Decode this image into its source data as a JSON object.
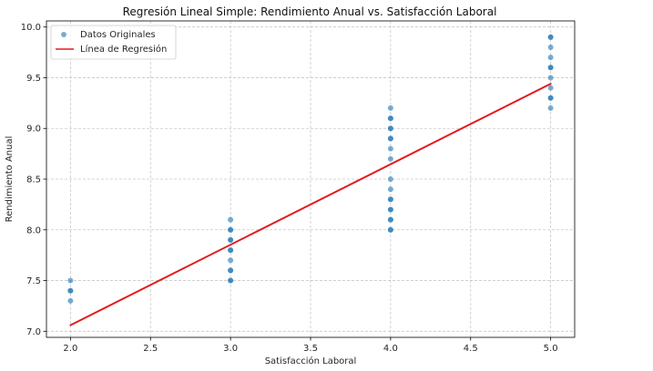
{
  "chart_data": {
    "type": "scatter",
    "title": "Regresión Lineal Simple: Rendimiento Anual vs. Satisfacción Laboral",
    "xlabel": "Satisfacción Laboral",
    "ylabel": "Rendimiento Anual",
    "xlim": [
      1.85,
      5.15
    ],
    "ylim": [
      6.94,
      10.06
    ],
    "xticks": [
      "2.0",
      "2.5",
      "3.0",
      "3.5",
      "4.0",
      "4.5",
      "5.0"
    ],
    "yticks": [
      "7.0",
      "7.5",
      "8.0",
      "8.5",
      "9.0",
      "9.5",
      "10.0"
    ],
    "grid": true,
    "legend_position": "top-left",
    "series": [
      {
        "name": "Datos Originales",
        "kind": "scatter",
        "color": "#1f77b4",
        "points": [
          [
            2,
            7.5
          ],
          [
            2,
            7.4
          ],
          [
            2,
            7.4
          ],
          [
            2,
            7.3
          ],
          [
            3,
            8.1
          ],
          [
            3,
            8.0
          ],
          [
            3,
            8.0
          ],
          [
            3,
            7.9
          ],
          [
            3,
            7.9
          ],
          [
            3,
            7.8
          ],
          [
            3,
            7.8
          ],
          [
            3,
            7.7
          ],
          [
            3,
            7.6
          ],
          [
            3,
            7.6
          ],
          [
            3,
            7.5
          ],
          [
            3,
            7.5
          ],
          [
            4,
            9.2
          ],
          [
            4,
            9.1
          ],
          [
            4,
            9.1
          ],
          [
            4,
            9.0
          ],
          [
            4,
            9.0
          ],
          [
            4,
            8.9
          ],
          [
            4,
            8.9
          ],
          [
            4,
            8.8
          ],
          [
            4,
            8.7
          ],
          [
            4,
            8.5
          ],
          [
            4,
            8.4
          ],
          [
            4,
            8.3
          ],
          [
            4,
            8.3
          ],
          [
            4,
            8.2
          ],
          [
            4,
            8.2
          ],
          [
            4,
            8.1
          ],
          [
            4,
            8.1
          ],
          [
            4,
            8.0
          ],
          [
            4,
            8.0
          ],
          [
            5,
            9.9
          ],
          [
            5,
            9.9
          ],
          [
            5,
            9.8
          ],
          [
            5,
            9.7
          ],
          [
            5,
            9.6
          ],
          [
            5,
            9.6
          ],
          [
            5,
            9.5
          ],
          [
            5,
            9.4
          ],
          [
            5,
            9.3
          ],
          [
            5,
            9.3
          ],
          [
            5,
            9.2
          ]
        ]
      },
      {
        "name": "Línea de Regresión",
        "kind": "line",
        "color": "#e41a1c",
        "x": [
          2,
          5
        ],
        "y": [
          7.06,
          9.44
        ]
      }
    ]
  }
}
